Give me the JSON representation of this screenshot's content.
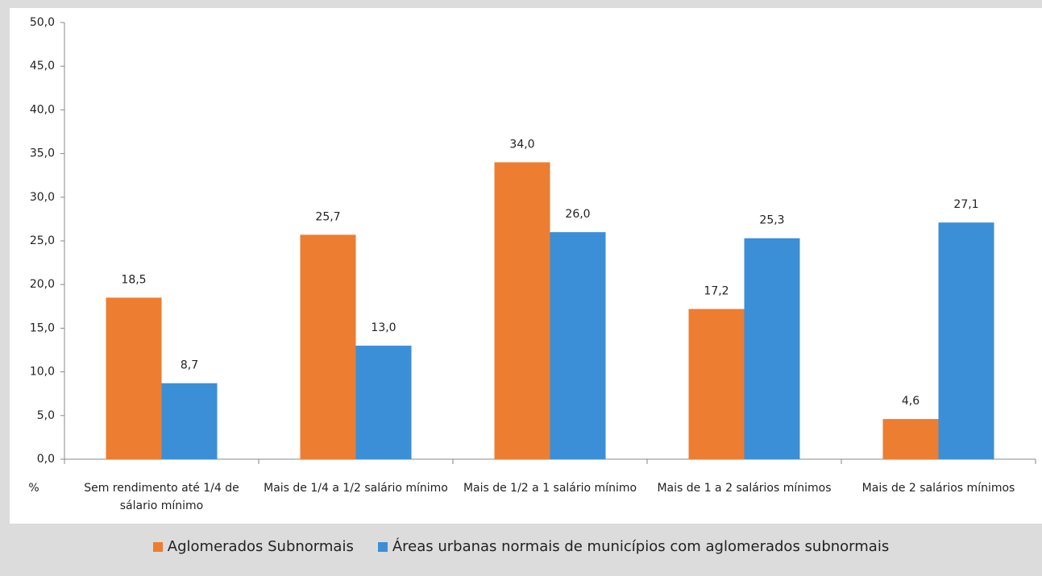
{
  "chart_data": {
    "type": "bar",
    "y_label": "%",
    "categories": [
      "Sem rendimento até 1/4 de sálario mínimo",
      "Mais de 1/4 a 1/2 salário mínimo",
      "Mais de 1/2 a 1 salário mínimo",
      "Mais de 1 a 2 salários mínimos",
      "Mais de 2 salários mínimos"
    ],
    "series": [
      {
        "name": "Aglomerados Subnormais",
        "color": "#ed7d31",
        "values": [
          18.5,
          25.7,
          34.0,
          17.2,
          4.6
        ],
        "value_labels": [
          "18,5",
          "25,7",
          "34,0",
          "17,2",
          "4,6"
        ]
      },
      {
        "name": "Áreas urbanas normais de municípios com aglomerados subnormais",
        "color": "#3b8fd6",
        "values": [
          8.7,
          13.0,
          26.0,
          25.3,
          27.1
        ],
        "value_labels": [
          "8,7",
          "13,0",
          "26,0",
          "25,3",
          "27,1"
        ]
      }
    ],
    "ylim": [
      0,
      50
    ],
    "yticks": [
      {
        "value": 0,
        "label": "0,0"
      },
      {
        "value": 5,
        "label": "5,0"
      },
      {
        "value": 10,
        "label": "10,0"
      },
      {
        "value": 15,
        "label": "15,0"
      },
      {
        "value": 20,
        "label": "20,0"
      },
      {
        "value": 25,
        "label": "25,0"
      },
      {
        "value": 30,
        "label": "30,0"
      },
      {
        "value": 35,
        "label": "35,0"
      },
      {
        "value": 40,
        "label": "40,0"
      },
      {
        "value": 45,
        "label": "45,0"
      },
      {
        "value": 50,
        "label": "50,0"
      }
    ],
    "legend": "bottom"
  }
}
